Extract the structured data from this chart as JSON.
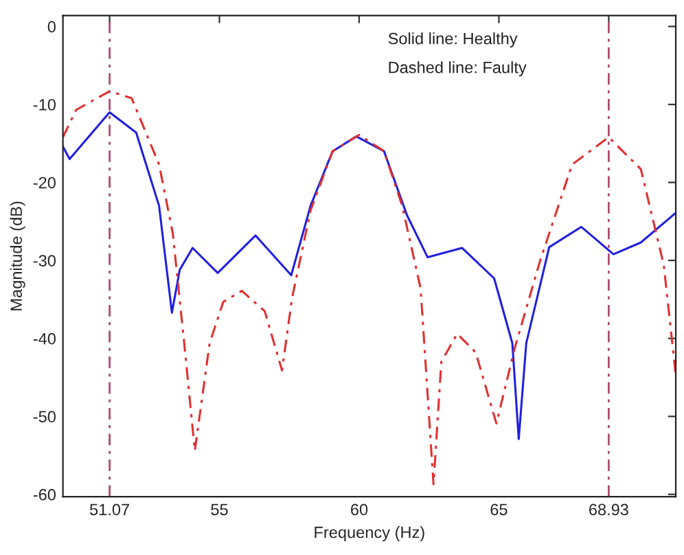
{
  "chart_data": {
    "type": "line",
    "xlabel": "Frequency (Hz)",
    "ylabel": "Magnitude (dB)",
    "xlim": [
      49.4,
      71.33
    ],
    "ylim": [
      -60.3,
      1.4
    ],
    "xticks": [
      51.07,
      55,
      60,
      65,
      68.93
    ],
    "yticks": [
      0,
      -10,
      -20,
      -30,
      -40,
      -50,
      -60
    ],
    "grid": false,
    "legend": false,
    "annotations": [
      "Solid line: Healthy",
      "Dashed line: Faulty"
    ],
    "ref_lines": [
      {
        "axis": "x",
        "value": 51.07,
        "color": "#b04a70",
        "line_style": "dashed"
      },
      {
        "axis": "x",
        "value": 68.93,
        "color": "#b04a70",
        "line_style": "dashed"
      }
    ],
    "series": [
      {
        "color": "#2020e0",
        "line_style": "solid",
        "x": [
          49.4,
          49.64,
          51.07,
          52.02,
          52.84,
          53.3,
          53.58,
          54.04,
          54.94,
          56.29,
          57.57,
          58.26,
          59.05,
          59.9,
          60.89,
          61.71,
          62.45,
          63.68,
          64.83,
          65.48,
          65.71,
          65.98,
          66.8,
          67.95,
          69.1,
          70.08,
          71.33
        ],
        "values": [
          -15.4,
          -17.0,
          -11.0,
          -13.6,
          -23.0,
          -36.7,
          -31.2,
          -28.4,
          -31.6,
          -26.8,
          -31.9,
          -23.0,
          -16.0,
          -14.1,
          -16.0,
          -24.2,
          -29.6,
          -28.4,
          -32.3,
          -40.6,
          -52.9,
          -40.6,
          -28.3,
          -25.7,
          -29.2,
          -27.7,
          -23.9
        ]
      },
      {
        "color": "#e03030",
        "line_style": "dashed",
        "x": [
          49.4,
          49.87,
          51.07,
          51.86,
          52.84,
          53.33,
          53.74,
          54.12,
          54.65,
          55.14,
          55.8,
          56.62,
          57.24,
          57.6,
          58.26,
          59.05,
          60.0,
          60.89,
          61.54,
          62.2,
          62.66,
          62.94,
          63.51,
          64.17,
          64.91,
          65.57,
          66.47,
          67.62,
          68.93,
          70.08,
          70.9,
          71.33
        ],
        "values": [
          -14.2,
          -10.7,
          -8.3,
          -9.2,
          -17.7,
          -26.5,
          -40.6,
          -54.4,
          -40.6,
          -35.3,
          -33.9,
          -36.5,
          -44.1,
          -34.8,
          -23.6,
          -16.0,
          -13.9,
          -16.0,
          -23.0,
          -33.6,
          -58.7,
          -43.0,
          -39.4,
          -41.8,
          -50.9,
          -41.2,
          -30.1,
          -17.7,
          -14.2,
          -18.3,
          -30.6,
          -44.7
        ]
      }
    ]
  }
}
